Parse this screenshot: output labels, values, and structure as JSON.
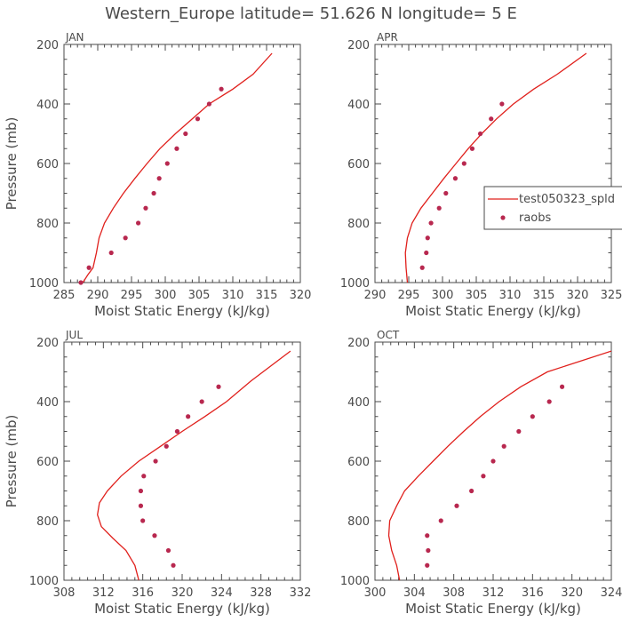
{
  "figure": {
    "title": "Western_Europe  latitude= 51.626 N longitude= 5 E",
    "model_color": "#e0201c",
    "obs_color": "#b8284f"
  },
  "legend": {
    "model_label": "test050323_spld",
    "obs_label": "raobs"
  },
  "chart_data": [
    {
      "type": "line",
      "panel": "JAN",
      "title": "JAN",
      "xlabel": "Moist Static Energy (kJ/kg)",
      "ylabel": "Pressure (mb)",
      "xlim": [
        285,
        320
      ],
      "ylim": [
        1000,
        200
      ],
      "xticks": [
        285,
        290,
        295,
        300,
        305,
        310,
        315,
        320
      ],
      "yticks": [
        200,
        400,
        600,
        800,
        1000
      ],
      "series": [
        {
          "name": "test050323_spld",
          "style": "line",
          "x": [
            287.8,
            288.5,
            289.3,
            289.8,
            290.2,
            291.0,
            292.3,
            293.8,
            295.5,
            297.3,
            299.2,
            301.5,
            304.0,
            306.5,
            310.0,
            313.0,
            315.8
          ],
          "y": [
            1000,
            975,
            950,
            900,
            850,
            800,
            750,
            700,
            650,
            600,
            550,
            500,
            450,
            400,
            350,
            300,
            230
          ]
        },
        {
          "name": "raobs",
          "style": "points",
          "x": [
            287.5,
            288.7,
            292.0,
            294.1,
            296.0,
            297.1,
            298.3,
            299.1,
            300.3,
            301.7,
            303.0,
            304.8,
            306.5,
            308.3
          ],
          "y": [
            1000,
            950,
            900,
            850,
            800,
            750,
            700,
            650,
            600,
            550,
            500,
            450,
            400,
            350
          ]
        }
      ]
    },
    {
      "type": "line",
      "panel": "APR",
      "title": "APR",
      "xlabel": "Moist Static Energy (kJ/kg)",
      "ylabel": "Pressure (mb)",
      "xlim": [
        290,
        325
      ],
      "ylim": [
        1000,
        200
      ],
      "xticks": [
        290,
        295,
        300,
        305,
        310,
        315,
        320,
        325
      ],
      "yticks": [
        200,
        400,
        600,
        800,
        1000
      ],
      "series": [
        {
          "name": "test050323_spld",
          "style": "line",
          "x": [
            294.8,
            294.6,
            294.5,
            294.8,
            295.5,
            296.8,
            298.5,
            300.2,
            302.0,
            303.8,
            305.8,
            308.0,
            310.5,
            313.5,
            317.0,
            321.3
          ],
          "y": [
            1000,
            950,
            900,
            850,
            800,
            750,
            700,
            650,
            600,
            550,
            500,
            450,
            400,
            350,
            300,
            230
          ]
        },
        {
          "name": "raobs",
          "style": "points",
          "x": [
            297.0,
            297.6,
            297.8,
            298.3,
            299.5,
            300.5,
            301.9,
            303.2,
            304.4,
            305.6,
            307.2,
            308.8
          ],
          "y": [
            950,
            900,
            850,
            800,
            750,
            700,
            650,
            600,
            550,
            500,
            450,
            400
          ]
        }
      ]
    },
    {
      "type": "line",
      "panel": "JUL",
      "title": "JUL",
      "xlabel": "Moist Static Energy (kJ/kg)",
      "ylabel": "Pressure (mb)",
      "xlim": [
        308,
        332
      ],
      "ylim": [
        1000,
        200
      ],
      "xticks": [
        308,
        312,
        316,
        320,
        324,
        328,
        332
      ],
      "yticks": [
        200,
        400,
        600,
        800,
        1000
      ],
      "series": [
        {
          "name": "test050323_spld",
          "style": "line",
          "x": [
            315.6,
            315.2,
            314.3,
            313.0,
            311.8,
            311.4,
            311.6,
            312.4,
            313.8,
            315.6,
            317.8,
            320.0,
            322.3,
            324.5,
            327.0,
            331.0
          ],
          "y": [
            1000,
            950,
            900,
            860,
            820,
            780,
            740,
            700,
            650,
            600,
            550,
            500,
            450,
            400,
            330,
            230
          ]
        },
        {
          "name": "raobs",
          "style": "points",
          "x": [
            319.1,
            318.6,
            317.2,
            316.0,
            315.8,
            315.8,
            316.1,
            317.3,
            318.4,
            319.5,
            320.6,
            322.0,
            323.7
          ],
          "y": [
            950,
            900,
            850,
            800,
            750,
            700,
            650,
            600,
            550,
            500,
            450,
            400,
            350
          ]
        }
      ]
    },
    {
      "type": "line",
      "panel": "OCT",
      "title": "OCT",
      "xlabel": "Moist Static Energy (kJ/kg)",
      "ylabel": "Pressure (mb)",
      "xlim": [
        300,
        324
      ],
      "ylim": [
        1000,
        200
      ],
      "xticks": [
        300,
        304,
        308,
        312,
        316,
        320,
        324
      ],
      "yticks": [
        200,
        400,
        600,
        800,
        1000
      ],
      "series": [
        {
          "name": "test050323_spld",
          "style": "line",
          "x": [
            302.5,
            302.2,
            301.7,
            301.4,
            301.5,
            302.2,
            303.0,
            304.4,
            305.9,
            307.4,
            309.0,
            310.7,
            312.6,
            314.8,
            317.5,
            324.0
          ],
          "y": [
            1000,
            950,
            900,
            850,
            800,
            750,
            700,
            650,
            600,
            550,
            500,
            450,
            400,
            350,
            300,
            230
          ]
        },
        {
          "name": "raobs",
          "style": "points",
          "x": [
            305.3,
            305.4,
            305.3,
            306.7,
            308.3,
            309.8,
            311.0,
            312.0,
            313.1,
            314.6,
            316.0,
            317.7,
            319.0
          ],
          "y": [
            950,
            900,
            850,
            800,
            750,
            700,
            650,
            600,
            550,
            500,
            450,
            400,
            350
          ]
        }
      ]
    }
  ]
}
